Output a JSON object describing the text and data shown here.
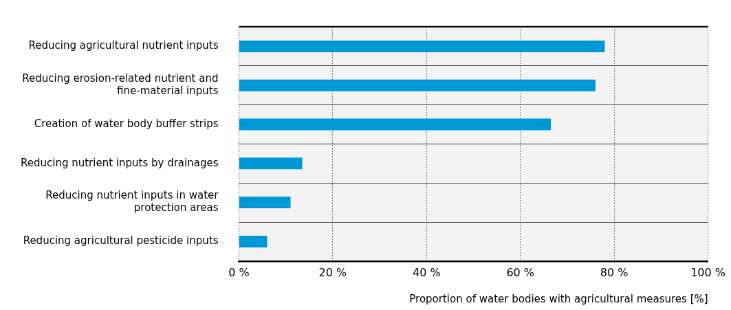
{
  "chart_data": {
    "type": "bar",
    "orientation": "horizontal",
    "xlabel": "Proportion of water bodies with agricultural measures [%]",
    "categories": [
      "Reducing agricultural nutrient inputs",
      "Reducing erosion-related nutrient and fine-material inputs",
      "Creation of water body buffer strips",
      "Reducing nutrient inputs by drainages",
      "Reducing nutrient inputs in water protection areas",
      "Reducing agricultural pesticide inputs"
    ],
    "values": [
      78,
      76,
      66.5,
      13.5,
      11,
      6
    ],
    "color": "#0099d8",
    "xlim": [
      0,
      100
    ],
    "xticks": [
      {
        "value": 0,
        "label": "0 %"
      },
      {
        "value": 20,
        "label": "20 %"
      },
      {
        "value": 40,
        "label": "40 %"
      },
      {
        "value": 60,
        "label": "60 %"
      },
      {
        "value": 80,
        "label": "80 %"
      },
      {
        "value": 100,
        "label": "100 %"
      }
    ],
    "grid": true,
    "legend": false
  }
}
